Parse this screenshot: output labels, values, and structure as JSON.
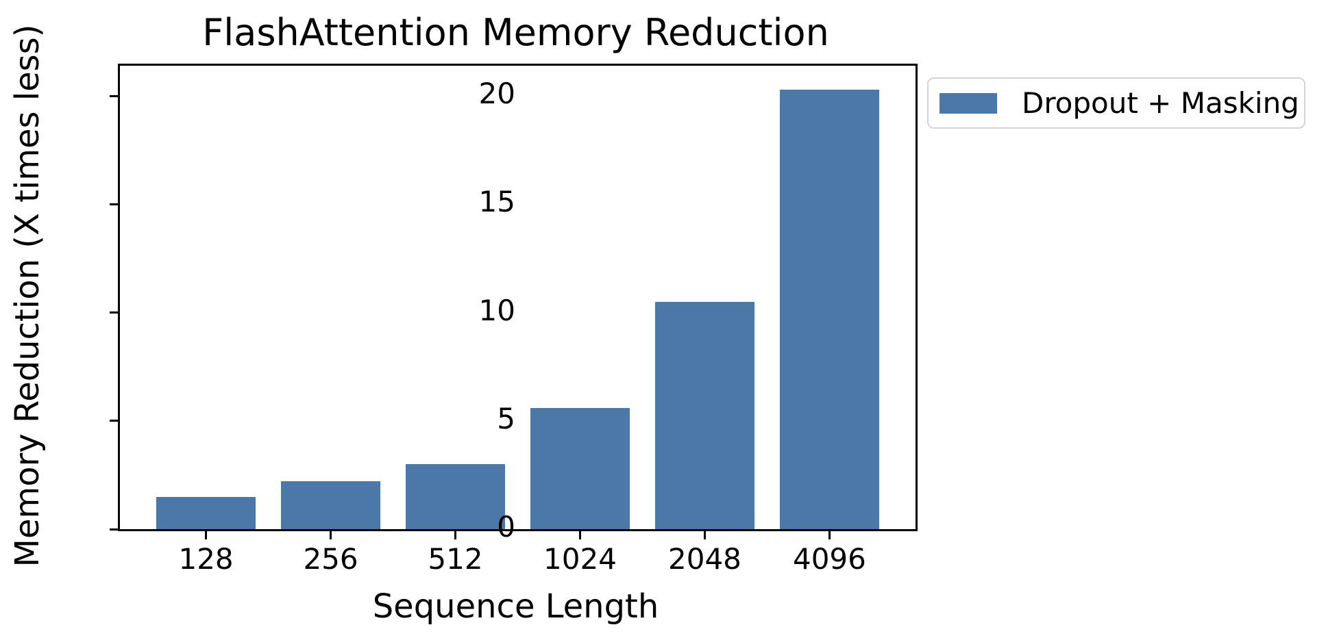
{
  "figure": {
    "title": "FlashAttention Memory Reduction",
    "legend": {
      "label": "Dropout + Masking",
      "swatch_color": "#4C78A8",
      "position": "upper right, outside plot"
    }
  },
  "chart_data": {
    "type": "bar",
    "title": "FlashAttention Memory Reduction",
    "categories": [
      "128",
      "256",
      "512",
      "1024",
      "2048",
      "4096"
    ],
    "values": [
      1.5,
      2.2,
      3.0,
      5.6,
      10.5,
      20.3
    ],
    "series": [
      {
        "name": "Dropout + Masking",
        "values": [
          1.5,
          2.2,
          3.0,
          5.6,
          10.5,
          20.3
        ]
      }
    ],
    "xlabel": "Sequence Length",
    "ylabel": "Memory Reduction (X times less)",
    "yticks": [
      0,
      5,
      10,
      15,
      20
    ],
    "ylim": [
      0,
      21.4
    ],
    "bar_color": "#4C78A8",
    "bar_width_fraction": 0.8,
    "grid": false,
    "background_color": "#ffffff",
    "axis_color": "#000000",
    "legend_entries": [
      "Dropout + Masking"
    ],
    "legend_position": "upper right, outside axes"
  }
}
